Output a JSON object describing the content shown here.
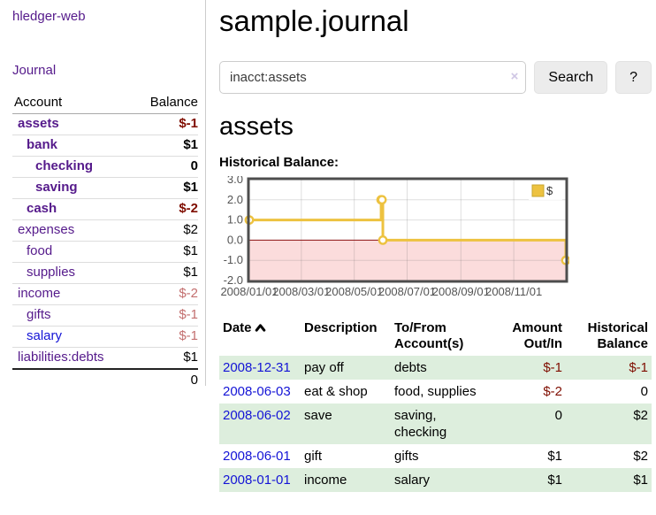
{
  "app": {
    "title": "hledger-web",
    "nav_journal": "Journal"
  },
  "sidebar": {
    "table": {
      "col_account": "Account",
      "col_balance": "Balance",
      "accounts": [
        {
          "name": "assets",
          "depth": 1,
          "bold": true,
          "balance": "$-1"
        },
        {
          "name": "bank",
          "depth": 2,
          "bold": true,
          "balance": "$1"
        },
        {
          "name": "checking",
          "depth": 3,
          "bold": true,
          "balance": "0"
        },
        {
          "name": "saving",
          "depth": 3,
          "bold": true,
          "balance": "$1"
        },
        {
          "name": "cash",
          "depth": 2,
          "bold": true,
          "balance": "$-2"
        },
        {
          "name": "expenses",
          "depth": 1,
          "bold": false,
          "balance": "$2"
        },
        {
          "name": "food",
          "depth": 2,
          "bold": false,
          "balance": "$1"
        },
        {
          "name": "supplies",
          "depth": 2,
          "bold": false,
          "balance": "$1"
        },
        {
          "name": "income",
          "depth": 1,
          "bold": false,
          "balance": "$-2"
        },
        {
          "name": "gifts",
          "depth": 2,
          "bold": false,
          "balance": "$-1"
        },
        {
          "name": "salary",
          "depth": 2,
          "bold": false,
          "balance": "$-1",
          "new_link": true
        },
        {
          "name": "liabilities:debts",
          "depth": 1,
          "bold": false,
          "balance": "$1"
        }
      ],
      "total": "0"
    }
  },
  "main": {
    "title": "sample.journal",
    "search": {
      "value": "inacct:assets",
      "clear_icon": "×",
      "button": "Search",
      "help": "?"
    },
    "account_heading": "assets",
    "chart_label": "Historical Balance:"
  },
  "chart_data": {
    "type": "line",
    "step": true,
    "title": "Historical Balance",
    "legend": [
      {
        "label": "$",
        "color": "#edc240"
      }
    ],
    "legend_position": "top-right",
    "grid": true,
    "x_range": [
      "2008-01-01",
      "2008-12-31"
    ],
    "ylim": [
      -2,
      3
    ],
    "y_ticks": [
      3,
      2,
      1,
      0,
      -1,
      -2
    ],
    "x_ticks": [
      {
        "date": "2008-01-01",
        "label": "2008/01/01"
      },
      {
        "date": "2008-03-01",
        "label": "2008/03/01"
      },
      {
        "date": "2008-05-01",
        "label": "2008/05/01"
      },
      {
        "date": "2008-07-01",
        "label": "2008/07/01"
      },
      {
        "date": "2008-09-01",
        "label": "2008/09/01"
      },
      {
        "date": "2008-11-01",
        "label": "2008/11/01"
      }
    ],
    "negative_region": true,
    "series": [
      {
        "name": "$",
        "points": [
          {
            "date": "2008-01-01",
            "value": 1
          },
          {
            "date": "2008-06-01",
            "value": 2
          },
          {
            "date": "2008-06-02",
            "value": 2
          },
          {
            "date": "2008-06-03",
            "value": 0
          },
          {
            "date": "2008-12-31",
            "value": -1
          }
        ]
      }
    ]
  },
  "register": {
    "headers": [
      "Date",
      "Description",
      "To/From Account(s)",
      "Amount Out/In",
      "Historical Balance"
    ],
    "rows": [
      {
        "date": "2008-12-31",
        "description": "pay off",
        "accounts": "debts",
        "amount": "$-1",
        "balance": "$-1"
      },
      {
        "date": "2008-06-03",
        "description": "eat & shop",
        "accounts": "food, supplies",
        "amount": "$-2",
        "balance": "0"
      },
      {
        "date": "2008-06-02",
        "description": "save",
        "accounts": "saving, checking",
        "amount": "0",
        "balance": "$2"
      },
      {
        "date": "2008-06-01",
        "description": "gift",
        "accounts": "gifts",
        "amount": "$1",
        "balance": "$2"
      },
      {
        "date": "2008-01-01",
        "description": "income",
        "accounts": "salary",
        "amount": "$1",
        "balance": "$1"
      }
    ]
  },
  "colors": {
    "link_visited": "#551a8b",
    "link_new": "#1414d6",
    "neg_strong": "#7f0d00",
    "neg_soft": "#c36f6f",
    "stripe": "#ddeedd",
    "chart_gold": "#edc240",
    "chart_neg_bg": "#fbdcdc",
    "chart_zero": "#8f1515"
  }
}
